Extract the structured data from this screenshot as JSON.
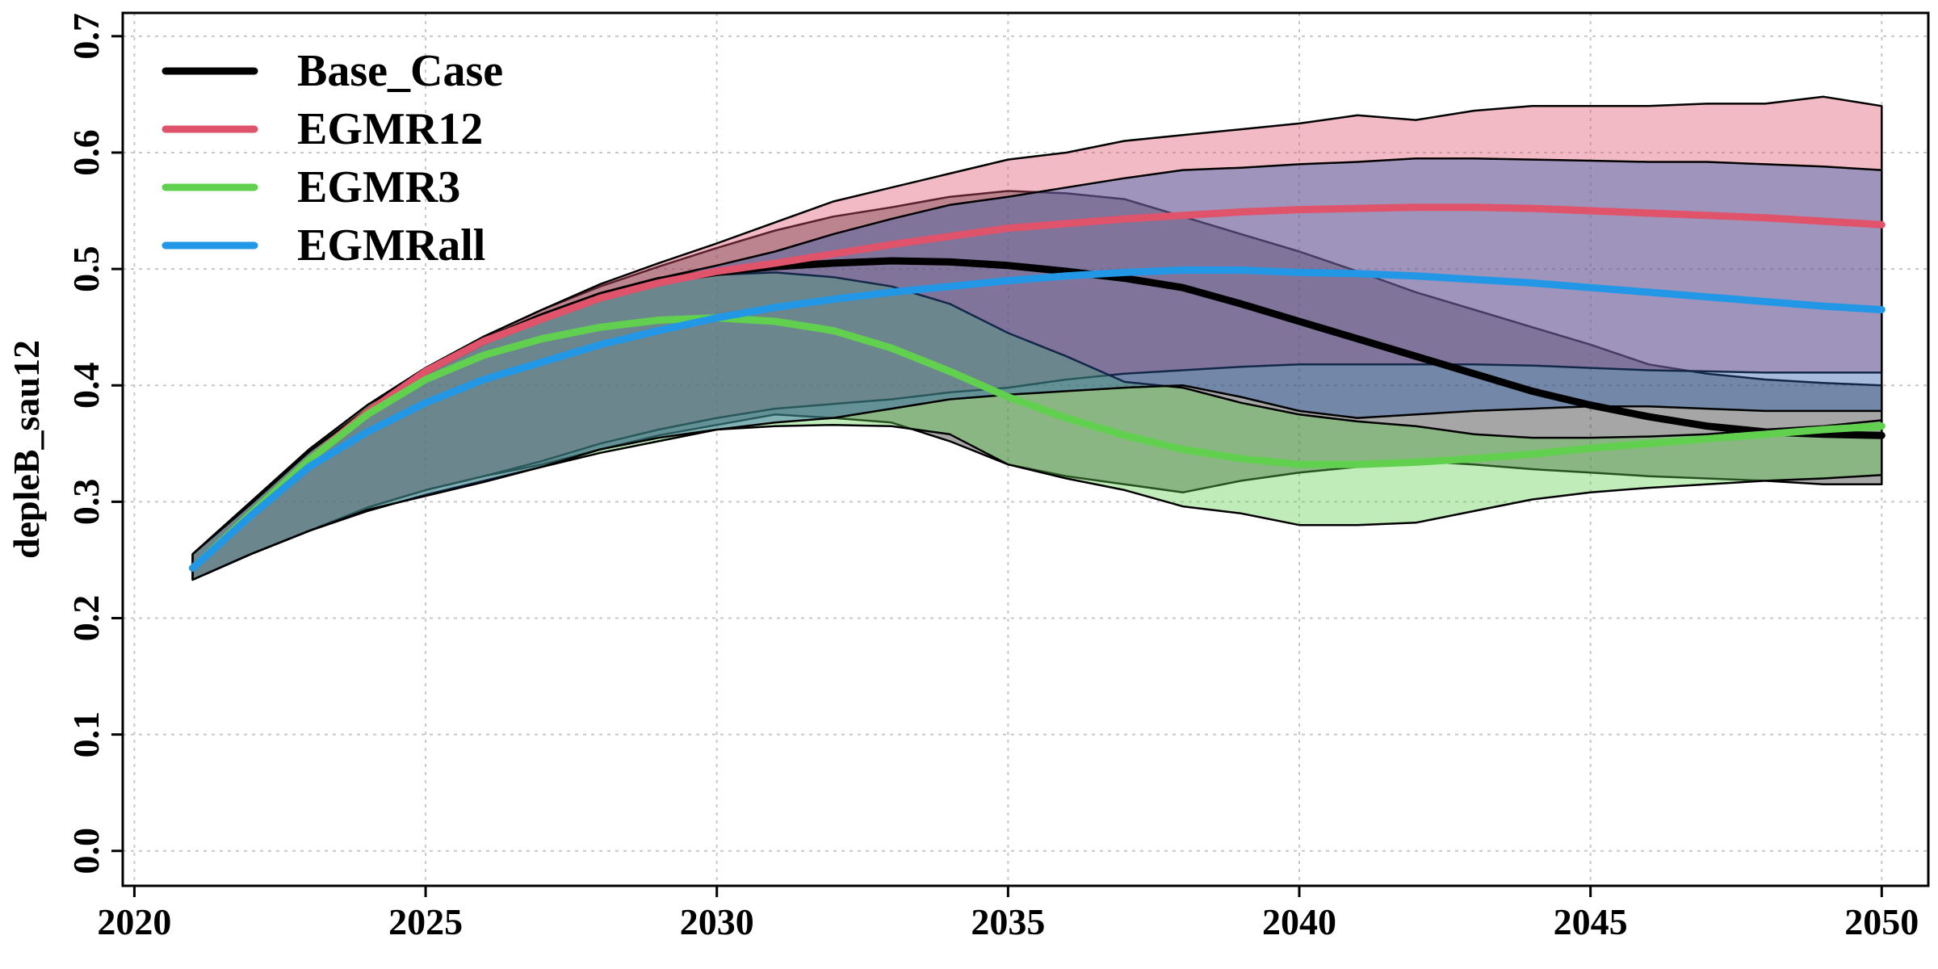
{
  "chart_data": {
    "type": "area",
    "title": "",
    "xlabel": "",
    "ylabel": "depleB_sau12",
    "xlim": [
      2019.8,
      2050.8
    ],
    "ylim": [
      -0.03,
      0.72
    ],
    "x_ticks": [
      "2020",
      "2025",
      "2030",
      "2035",
      "2040",
      "2045",
      "2050"
    ],
    "y_ticks": [
      "0.0",
      "0.1",
      "0.2",
      "0.3",
      "0.4",
      "0.5",
      "0.6",
      "0.7"
    ],
    "grid": true,
    "legend_position": "top-left",
    "x": [
      2021,
      2022,
      2023,
      2024,
      2025,
      2026,
      2027,
      2028,
      2029,
      2030,
      2031,
      2032,
      2033,
      2034,
      2035,
      2036,
      2037,
      2038,
      2039,
      2040,
      2041,
      2042,
      2043,
      2044,
      2045,
      2046,
      2047,
      2048,
      2049,
      2050
    ],
    "series": [
      {
        "name": "Base_Case",
        "line_color": "#000000",
        "fill_color": "#3a3a3a",
        "fill_opacity": 0.45,
        "median": [
          0.243,
          0.29,
          0.336,
          0.377,
          0.412,
          0.438,
          0.459,
          0.477,
          0.49,
          0.497,
          0.502,
          0.505,
          0.507,
          0.506,
          0.503,
          0.498,
          0.492,
          0.484,
          0.47,
          0.455,
          0.44,
          0.425,
          0.41,
          0.395,
          0.383,
          0.373,
          0.365,
          0.36,
          0.358,
          0.357
        ],
        "lower": [
          0.233,
          0.255,
          0.275,
          0.295,
          0.31,
          0.322,
          0.332,
          0.345,
          0.357,
          0.366,
          0.375,
          0.372,
          0.368,
          0.352,
          0.332,
          0.322,
          0.315,
          0.308,
          0.318,
          0.325,
          0.33,
          0.335,
          0.332,
          0.328,
          0.325,
          0.322,
          0.32,
          0.318,
          0.315,
          0.315
        ],
        "upper": [
          0.255,
          0.3,
          0.345,
          0.383,
          0.415,
          0.442,
          0.465,
          0.485,
          0.502,
          0.518,
          0.533,
          0.545,
          0.553,
          0.562,
          0.567,
          0.565,
          0.56,
          0.545,
          0.53,
          0.515,
          0.498,
          0.48,
          0.465,
          0.45,
          0.435,
          0.418,
          0.41,
          0.405,
          0.402,
          0.4
        ]
      },
      {
        "name": "EGMR12",
        "line_color": "#DF536B",
        "fill_color": "#DF536B",
        "fill_opacity": 0.4,
        "median": [
          0.243,
          0.29,
          0.336,
          0.377,
          0.412,
          0.438,
          0.457,
          0.475,
          0.488,
          0.498,
          0.505,
          0.513,
          0.521,
          0.528,
          0.535,
          0.539,
          0.543,
          0.546,
          0.549,
          0.551,
          0.552,
          0.553,
          0.553,
          0.552,
          0.55,
          0.548,
          0.546,
          0.544,
          0.541,
          0.538
        ],
        "lower": [
          0.233,
          0.255,
          0.275,
          0.295,
          0.31,
          0.322,
          0.335,
          0.35,
          0.362,
          0.372,
          0.38,
          0.384,
          0.388,
          0.394,
          0.398,
          0.405,
          0.41,
          0.413,
          0.416,
          0.418,
          0.418,
          0.418,
          0.418,
          0.417,
          0.415,
          0.413,
          0.412,
          0.411,
          0.411,
          0.411
        ],
        "upper": [
          0.255,
          0.3,
          0.345,
          0.383,
          0.415,
          0.442,
          0.465,
          0.487,
          0.505,
          0.522,
          0.54,
          0.558,
          0.57,
          0.582,
          0.594,
          0.6,
          0.61,
          0.615,
          0.62,
          0.625,
          0.632,
          0.628,
          0.636,
          0.64,
          0.64,
          0.64,
          0.642,
          0.642,
          0.648,
          0.64
        ]
      },
      {
        "name": "EGMR3",
        "line_color": "#61D04F",
        "fill_color": "#61D04F",
        "fill_opacity": 0.4,
        "median": [
          0.243,
          0.29,
          0.336,
          0.375,
          0.405,
          0.426,
          0.44,
          0.45,
          0.456,
          0.458,
          0.455,
          0.447,
          0.432,
          0.412,
          0.39,
          0.372,
          0.357,
          0.345,
          0.337,
          0.332,
          0.332,
          0.334,
          0.337,
          0.341,
          0.346,
          0.35,
          0.354,
          0.358,
          0.362,
          0.365
        ],
        "lower": [
          0.233,
          0.255,
          0.275,
          0.292,
          0.306,
          0.318,
          0.33,
          0.342,
          0.352,
          0.362,
          0.365,
          0.366,
          0.365,
          0.358,
          0.332,
          0.32,
          0.31,
          0.296,
          0.29,
          0.28,
          0.28,
          0.282,
          0.292,
          0.302,
          0.308,
          0.312,
          0.315,
          0.318,
          0.32,
          0.323
        ],
        "upper": [
          0.255,
          0.3,
          0.345,
          0.383,
          0.412,
          0.44,
          0.46,
          0.478,
          0.49,
          0.495,
          0.497,
          0.493,
          0.485,
          0.47,
          0.445,
          0.425,
          0.403,
          0.398,
          0.385,
          0.375,
          0.369,
          0.365,
          0.358,
          0.355,
          0.355,
          0.356,
          0.358,
          0.362,
          0.365,
          0.37
        ]
      },
      {
        "name": "EGMRall",
        "line_color": "#2297E6",
        "fill_color": "#2E5FAF",
        "fill_opacity": 0.42,
        "median": [
          0.243,
          0.288,
          0.33,
          0.36,
          0.385,
          0.405,
          0.42,
          0.435,
          0.447,
          0.458,
          0.467,
          0.474,
          0.48,
          0.485,
          0.49,
          0.494,
          0.497,
          0.499,
          0.499,
          0.497,
          0.496,
          0.494,
          0.491,
          0.488,
          0.484,
          0.48,
          0.476,
          0.472,
          0.468,
          0.465
        ],
        "lower": [
          0.233,
          0.255,
          0.275,
          0.293,
          0.305,
          0.317,
          0.33,
          0.345,
          0.355,
          0.362,
          0.368,
          0.372,
          0.38,
          0.388,
          0.392,
          0.395,
          0.398,
          0.4,
          0.39,
          0.378,
          0.372,
          0.375,
          0.378,
          0.38,
          0.382,
          0.382,
          0.38,
          0.378,
          0.378,
          0.378
        ],
        "upper": [
          0.255,
          0.298,
          0.343,
          0.38,
          0.412,
          0.44,
          0.46,
          0.478,
          0.492,
          0.503,
          0.515,
          0.53,
          0.543,
          0.555,
          0.562,
          0.57,
          0.578,
          0.585,
          0.587,
          0.59,
          0.592,
          0.595,
          0.595,
          0.594,
          0.593,
          0.592,
          0.592,
          0.59,
          0.588,
          0.585
        ]
      }
    ]
  }
}
